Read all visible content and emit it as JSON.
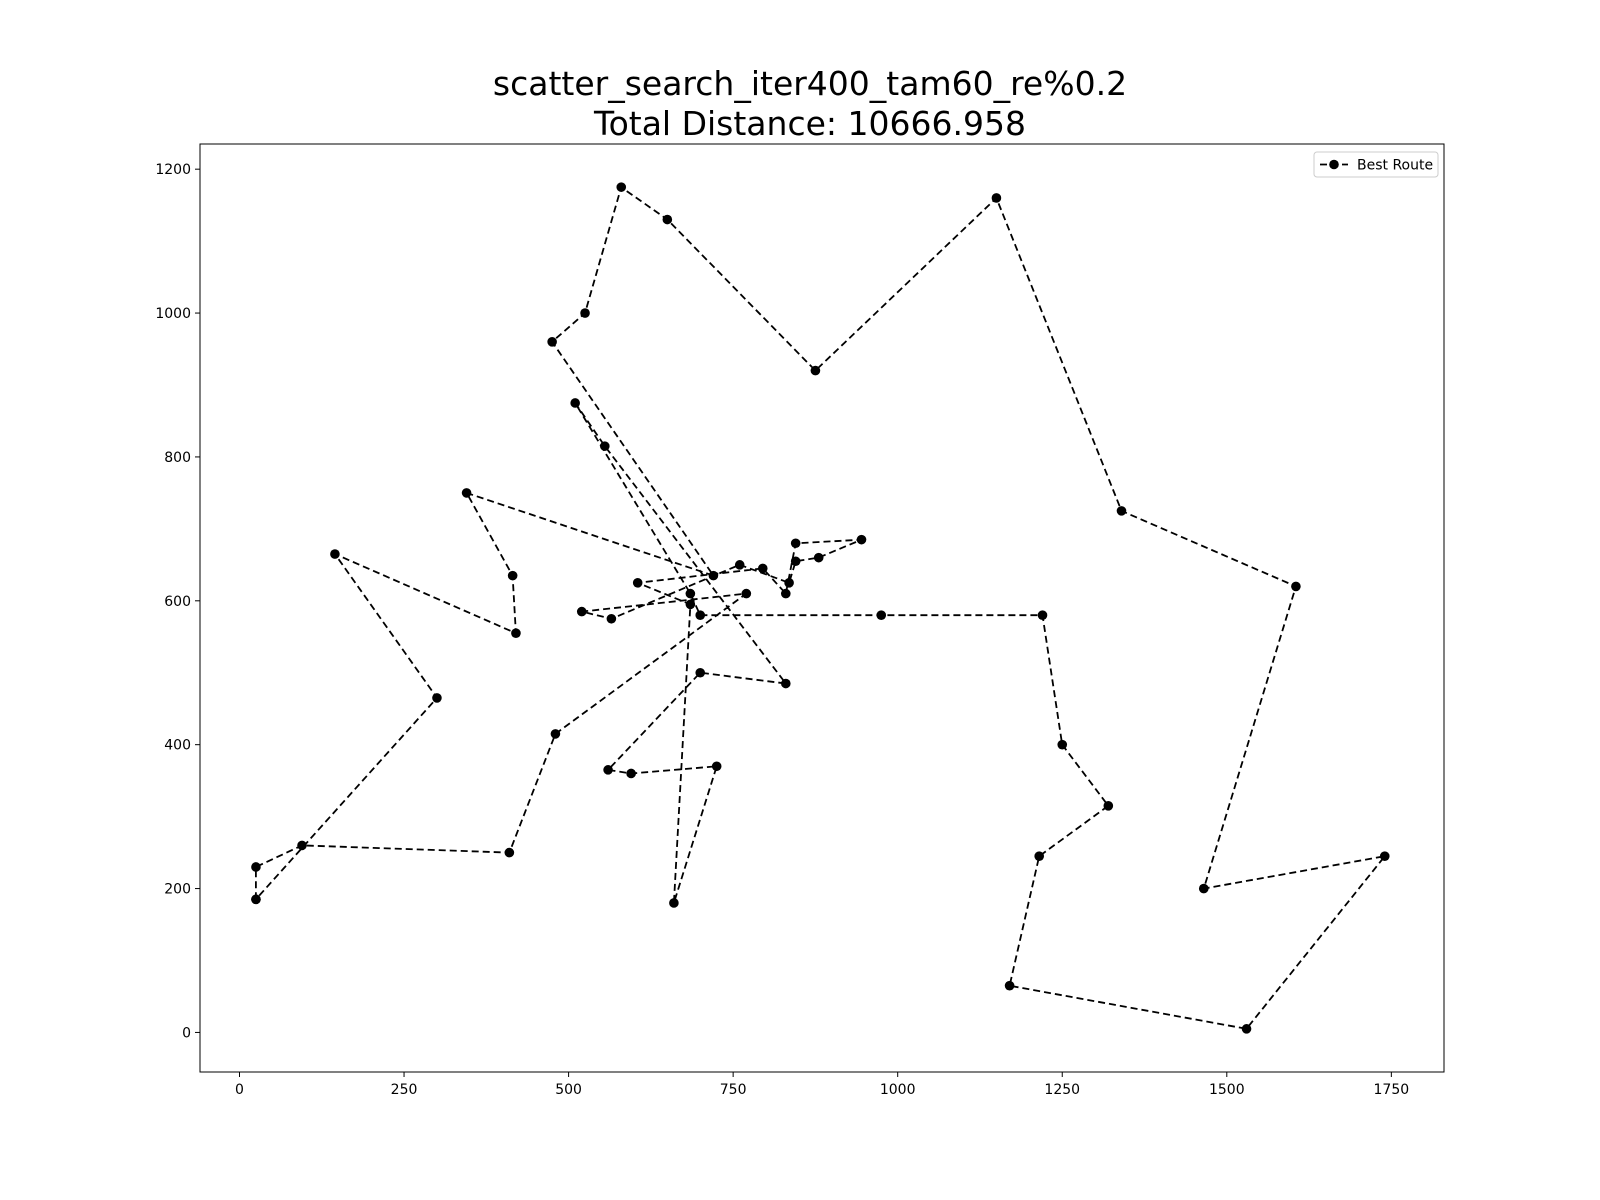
{
  "chart_data": {
    "type": "line",
    "title_lines": [
      "scatter_search_iter400_tam60_re%0.2",
      "Total Distance: 10666.958"
    ],
    "xlabel": "",
    "ylabel": "",
    "xlim": [
      -60,
      1830
    ],
    "ylim": [
      -55,
      1235
    ],
    "x_ticks": [
      0,
      250,
      500,
      750,
      1000,
      1250,
      1500,
      1750
    ],
    "y_ticks": [
      0,
      200,
      400,
      600,
      800,
      1000,
      1200
    ],
    "grid": false,
    "legend_position": "top-right",
    "line_color": "#000000",
    "line_style": "dashed",
    "marker": "circle",
    "series": [
      {
        "name": "Best Route",
        "points": [
          [
            25,
            185
          ],
          [
            25,
            230
          ],
          [
            95,
            260
          ],
          [
            410,
            250
          ],
          [
            480,
            415
          ],
          [
            770,
            610
          ],
          [
            520,
            585
          ],
          [
            565,
            575
          ],
          [
            760,
            650
          ],
          [
            835,
            625
          ],
          [
            845,
            655
          ],
          [
            880,
            660
          ],
          [
            945,
            685
          ],
          [
            845,
            680
          ],
          [
            830,
            610
          ],
          [
            795,
            645
          ],
          [
            605,
            625
          ],
          [
            685,
            595
          ],
          [
            660,
            180
          ],
          [
            725,
            370
          ],
          [
            595,
            360
          ],
          [
            560,
            365
          ],
          [
            700,
            500
          ],
          [
            830,
            485
          ],
          [
            555,
            815
          ],
          [
            510,
            875
          ],
          [
            685,
            610
          ],
          [
            700,
            580
          ],
          [
            975,
            580
          ],
          [
            1220,
            580
          ],
          [
            1250,
            400
          ],
          [
            1320,
            315
          ],
          [
            1215,
            245
          ],
          [
            1170,
            65
          ],
          [
            1530,
            5
          ],
          [
            1740,
            245
          ],
          [
            1465,
            200
          ],
          [
            1605,
            620
          ],
          [
            1340,
            725
          ],
          [
            1150,
            1160
          ],
          [
            875,
            920
          ],
          [
            650,
            1130
          ],
          [
            580,
            1175
          ],
          [
            525,
            1000
          ],
          [
            475,
            960
          ],
          [
            720,
            635
          ],
          [
            345,
            750
          ],
          [
            415,
            635
          ],
          [
            420,
            555
          ],
          [
            145,
            665
          ],
          [
            300,
            465
          ],
          [
            25,
            185
          ]
        ]
      }
    ]
  }
}
